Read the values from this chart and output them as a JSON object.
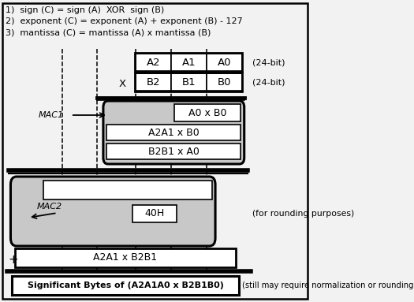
{
  "title_lines": [
    "1)  sign (C) = sign (A)  XOR  sign (B)",
    "2)  exponent (C) = exponent (A) + exponent (B) - 127",
    "3)  mantissa (C) = mantissa (A) x mantissa (B)"
  ],
  "bg_color": "#f2f2f2",
  "white": "#ffffff",
  "gray": "#c8c8c8",
  "black": "#000000"
}
